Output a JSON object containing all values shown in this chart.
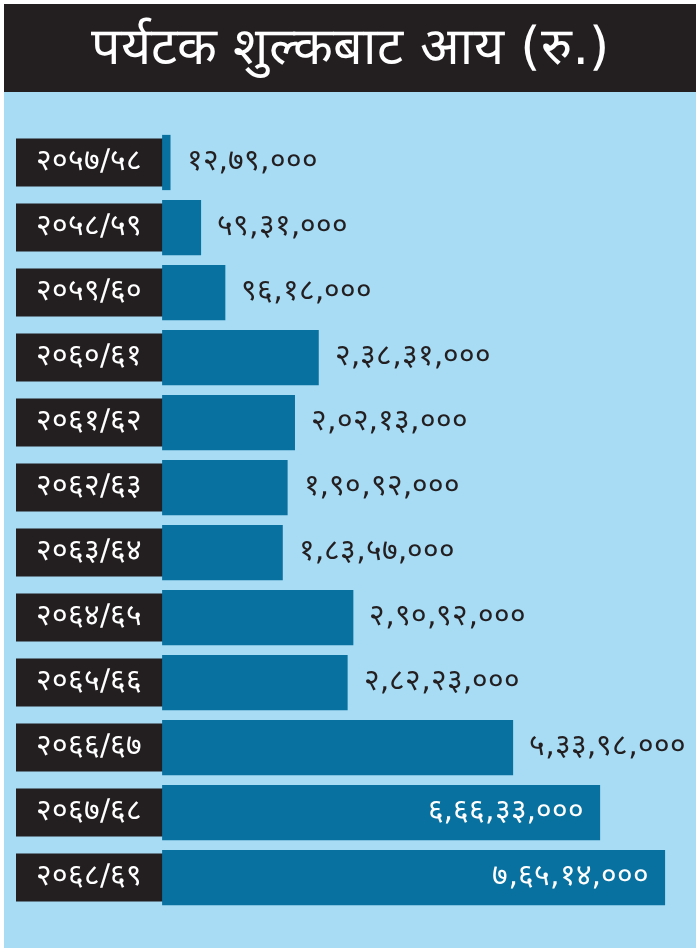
{
  "chart_data": {
    "type": "bar",
    "orientation": "horizontal",
    "title": "पर्यटक शुल्कबाट आय (रु.)",
    "categories": [
      "२०५७/५८",
      "२०५८/५९",
      "२०५९/६०",
      "२०६०/६१",
      "२०६१/६२",
      "२०६२/६३",
      "२०६३/६४",
      "२०६४/६५",
      "२०६५/६६",
      "२०६६/६७",
      "२०६७/६८",
      "२०६८/६९"
    ],
    "values": [
      1279000,
      5931000,
      9618000,
      23831000,
      20213000,
      19092000,
      18357000,
      29092000,
      28223000,
      53398000,
      66633000,
      76514000
    ],
    "value_labels": [
      "१२,७९,०००",
      "५९,३१,०००",
      "९६,१८,०००",
      "२,३८,३१,०००",
      "२,०२,१३,०००",
      "१,९०,९२,०००",
      "१,८३,५७,०००",
      "२,९०,९२,०००",
      "२,८२,२३,०००",
      "५,३३,९८,०००",
      "६,६६,३३,०००",
      "७,६५,१४,०००"
    ],
    "color": "#08719f",
    "tick_labels": "y",
    "grid": false,
    "legend": false
  }
}
